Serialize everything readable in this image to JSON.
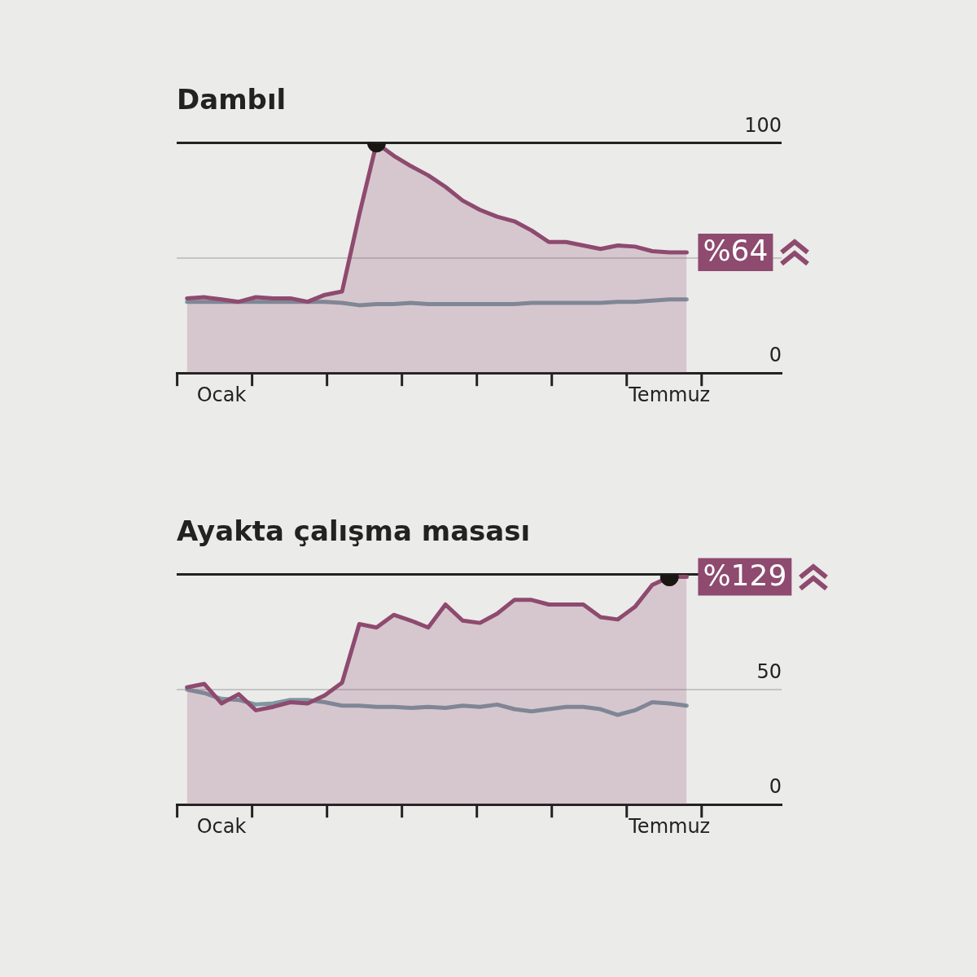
{
  "chart_data": [
    {
      "type": "line",
      "title": "Dambıl",
      "categories": [
        null,
        null,
        "Ocak",
        null,
        null,
        null,
        null,
        null,
        null,
        null,
        null,
        null,
        null,
        null,
        null,
        null,
        null,
        null,
        null,
        null,
        null,
        null,
        null,
        null,
        null,
        null,
        null,
        null,
        "Temmuz",
        null
      ],
      "series": [
        {
          "color": "#7d98a0",
          "values": [
            31,
            31,
            31,
            31,
            31,
            31,
            31,
            31,
            31,
            30.5,
            29.5,
            30,
            30,
            30.5,
            30,
            30,
            30,
            30,
            30,
            30,
            30.5,
            30.5,
            30.5,
            30.5,
            30.5,
            31,
            31,
            31.5,
            32,
            32
          ]
        },
        {
          "type": "area",
          "color": "#8e4a6f",
          "values": [
            32.5,
            33,
            32,
            31,
            33,
            32.5,
            32.5,
            31,
            34,
            35.5,
            69,
            100,
            94.5,
            90,
            86,
            81,
            75,
            71,
            68,
            66,
            62,
            57,
            57,
            55.5,
            54,
            55.5,
            55,
            53,
            52.5,
            52.5
          ]
        },
        {
          "type": "scatter",
          "color": "#1a1614",
          "values": [
            null,
            null,
            null,
            null,
            null,
            null,
            null,
            null,
            null,
            null,
            null,
            100,
            null,
            null,
            null,
            null,
            null,
            null,
            null,
            null,
            null,
            null,
            null,
            null,
            null,
            null,
            null,
            null,
            null,
            null
          ]
        }
      ],
      "ylim": [
        0,
        100
      ],
      "yticks": [
        0,
        {
          "value": 50,
          "label": null
        },
        100
      ],
      "grid": "y",
      "legend": false,
      "annotations": [
        "%64"
      ]
    },
    {
      "type": "line",
      "title": "Ayakta çalışma masası",
      "categories": [
        null,
        null,
        "Ocak",
        null,
        null,
        null,
        null,
        null,
        null,
        null,
        null,
        null,
        null,
        null,
        null,
        null,
        null,
        null,
        null,
        null,
        null,
        null,
        null,
        null,
        null,
        null,
        null,
        null,
        "Temmuz",
        null
      ],
      "series": [
        {
          "color": "#7d98a0",
          "values": [
            50,
            48.5,
            46,
            45.5,
            43.5,
            44,
            45.5,
            45.5,
            44.5,
            43,
            43,
            42.5,
            42.5,
            42,
            42.5,
            42,
            43,
            42.5,
            43.5,
            41.5,
            40.5,
            41.5,
            42.5,
            42.5,
            41.5,
            39,
            41,
            44.5,
            44,
            43
          ]
        },
        {
          "type": "area",
          "color": "#8e4a6f",
          "values": [
            51,
            52.5,
            44,
            48,
            41,
            42.5,
            44.5,
            44,
            47.5,
            53,
            78.5,
            77,
            82.5,
            80,
            77,
            87,
            80,
            79,
            83,
            89,
            89,
            87,
            87,
            87,
            81.5,
            80.5,
            86,
            95.5,
            99,
            99
          ]
        },
        {
          "type": "scatter",
          "color": "#1a1614",
          "values": [
            null,
            null,
            null,
            null,
            null,
            null,
            null,
            null,
            null,
            null,
            null,
            null,
            null,
            null,
            null,
            null,
            null,
            null,
            null,
            null,
            null,
            null,
            null,
            null,
            null,
            null,
            null,
            null,
            99,
            null
          ]
        }
      ],
      "ylim": [
        0,
        100
      ],
      "yticks": [
        0,
        50,
        {
          "value": 100,
          "label": null
        }
      ],
      "grid": "y",
      "legend": false,
      "annotations": [
        "%129"
      ]
    }
  ]
}
